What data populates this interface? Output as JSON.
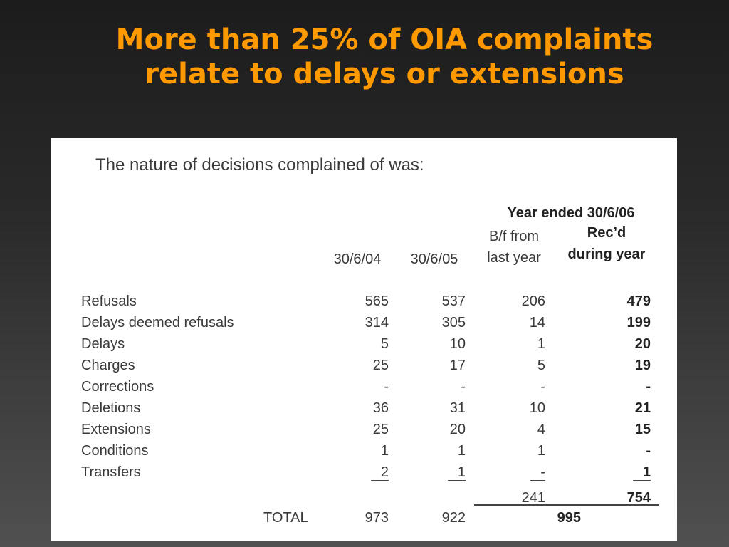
{
  "slide": {
    "title_line1": "More than 25% of OIA complaints",
    "title_line2": "relate to delays or extensions"
  },
  "document": {
    "heading": "The nature of decisions complained of was:",
    "group_header": "Year ended 30/6/06",
    "columns": {
      "c1": "30/6/04",
      "c2": "30/6/05",
      "c3_line1": "B/f from",
      "c3_line2": "last year",
      "c4_line1": "Rec’d",
      "c4_line2": "during year"
    },
    "rows": [
      {
        "label": "Refusals",
        "c1": "565",
        "c2": "537",
        "c3": "206",
        "c4": "479"
      },
      {
        "label": "Delays deemed refusals",
        "c1": "314",
        "c2": "305",
        "c3": "14",
        "c4": "199"
      },
      {
        "label": "Delays",
        "c1": "5",
        "c2": "10",
        "c3": "1",
        "c4": "20"
      },
      {
        "label": "Charges",
        "c1": "25",
        "c2": "17",
        "c3": "5",
        "c4": "19"
      },
      {
        "label": "Corrections",
        "c1": "-",
        "c2": "-",
        "c3": "-",
        "c4": "-"
      },
      {
        "label": "Deletions",
        "c1": "36",
        "c2": "31",
        "c3": "10",
        "c4": "21"
      },
      {
        "label": "Extensions",
        "c1": "25",
        "c2": "20",
        "c3": "4",
        "c4": "15"
      },
      {
        "label": "Conditions",
        "c1": "1",
        "c2": "1",
        "c3": "1",
        "c4": "-"
      },
      {
        "label": "Transfers",
        "c1": "2",
        "c2": "1",
        "c3": "-",
        "c4": "1"
      }
    ],
    "subtotals": {
      "c3": "241",
      "c4": "754"
    },
    "total": {
      "label": "TOTAL",
      "c1": "973",
      "c2": "922",
      "c34": "995"
    }
  }
}
